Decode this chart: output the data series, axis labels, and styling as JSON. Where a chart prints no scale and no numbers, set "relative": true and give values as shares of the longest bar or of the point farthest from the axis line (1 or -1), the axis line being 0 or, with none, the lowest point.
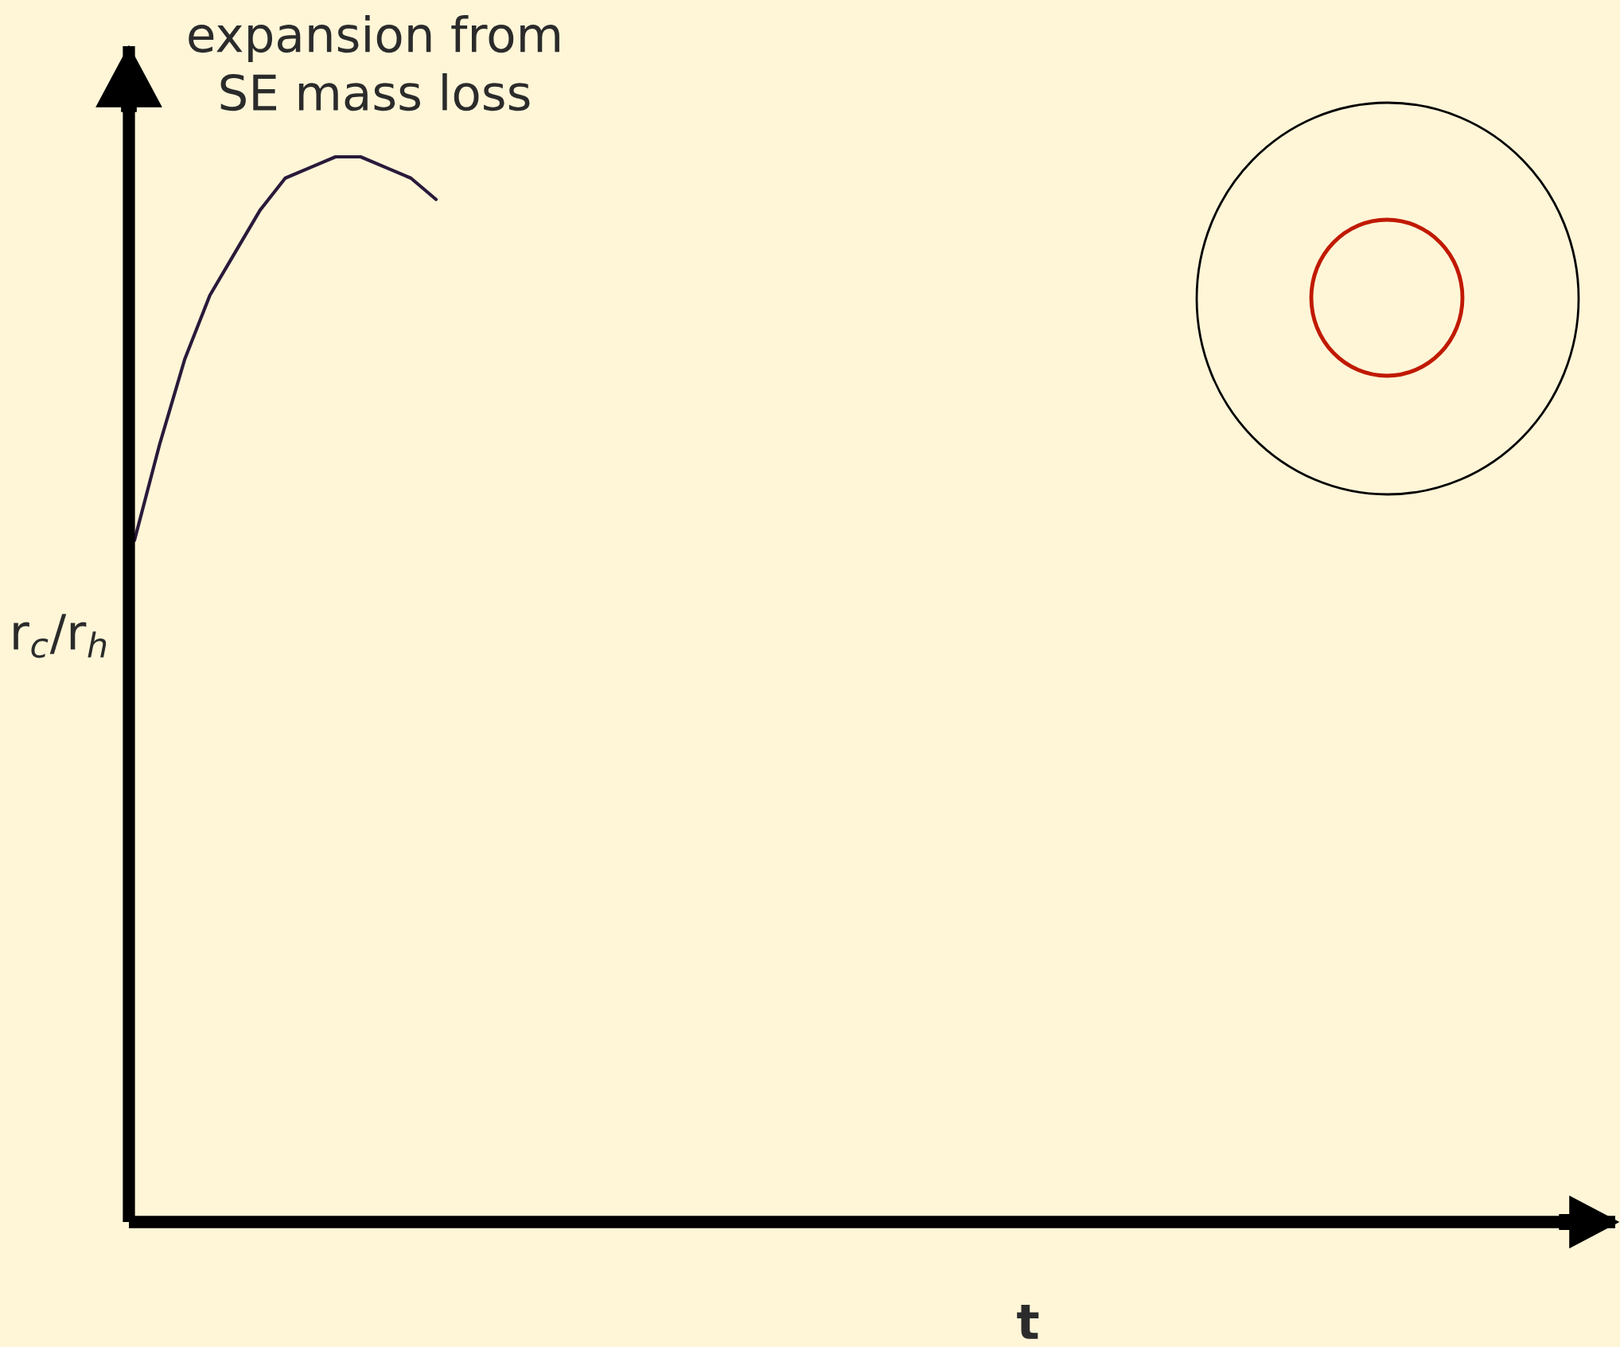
{
  "chart_data": {
    "type": "line",
    "relative": true,
    "title": "expansion from\nSE mass loss",
    "annotations": [
      "t"
    ],
    "ylabel": "r$_{c}$/r$_{h}$",
    "categories": [
      null,
      null,
      null,
      null,
      null,
      null,
      null,
      null,
      null,
      null,
      null,
      null,
      null
    ],
    "series": [
      {
        "color": "#2a1a3a",
        "values": [
          0.64,
          0.73,
          0.81,
          0.87,
          0.91,
          0.95,
          0.98,
          0.99,
          1,
          1,
          0.99,
          0.98,
          0.96
        ]
      }
    ],
    "marker": "none",
    "line_style": "solid",
    "grid": false,
    "legend": false
  }
}
